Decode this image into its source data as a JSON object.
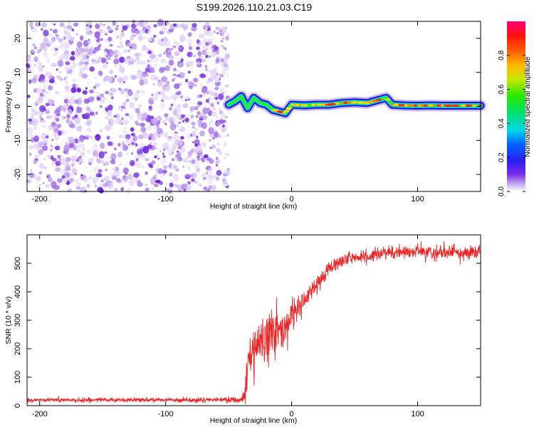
{
  "title": "S199.2026.110.21.03.C19",
  "colors": {
    "snr_line": "#ee2222",
    "noise_purple": "#8a2be2",
    "background": "#ffffff"
  },
  "chart_data": [
    {
      "type": "heatmap",
      "xlabel": "Height of straight line (km)",
      "ylabel": "Frequency (Hz)",
      "xlim": [
        -210,
        150
      ],
      "ylim": [
        -25,
        25
      ],
      "xticks": [
        -200,
        -100,
        0,
        100
      ],
      "yticks": [
        -20,
        -10,
        0,
        10,
        20
      ],
      "noise_region": {
        "x_start": -210,
        "x_end": -50
      },
      "trace": {
        "x": [
          -50,
          -45,
          -40,
          -35,
          -30,
          -25,
          -20,
          -15,
          -10,
          -5,
          0,
          10,
          20,
          30,
          40,
          50,
          60,
          70,
          75,
          80,
          90,
          100,
          110,
          120,
          130,
          140,
          150
        ],
        "freq": [
          0.5,
          1.5,
          3.0,
          -0.5,
          2.5,
          1.0,
          0.5,
          -1.0,
          -1.5,
          -2.0,
          0.5,
          0.3,
          0.5,
          0.5,
          1.0,
          1.2,
          1.0,
          2.0,
          2.5,
          0.5,
          0.3,
          0.2,
          0.3,
          0.2,
          0.2,
          0.2,
          0.2
        ],
        "amp": [
          0.25,
          0.3,
          0.35,
          0.3,
          0.4,
          0.4,
          0.45,
          0.5,
          0.55,
          0.6,
          0.7,
          0.85,
          0.9,
          0.9,
          0.95,
          0.95,
          0.95,
          0.95,
          0.9,
          0.85,
          0.85,
          0.85,
          0.85,
          0.8,
          0.8,
          0.8,
          0.8
        ]
      },
      "colorbar": {
        "label": "Normalized spectral amplitude",
        "range": [
          0.0,
          1.0
        ],
        "ticks": [
          "0.0",
          "0.2",
          "0.4",
          "0.6",
          "0.8"
        ],
        "tick_values": [
          0.0,
          0.2,
          0.4,
          0.6,
          0.8
        ]
      }
    },
    {
      "type": "line",
      "xlabel": "Height of straight line (km)",
      "ylabel": "SNR (10 * v/v)",
      "xlim": [
        -210,
        150
      ],
      "ylim": [
        0,
        600
      ],
      "xticks": [
        -200,
        -100,
        0,
        100
      ],
      "yticks": [
        0,
        100,
        200,
        300,
        400,
        500
      ],
      "series": [
        {
          "name": "SNR",
          "x": [
            -210,
            -150,
            -100,
            -50,
            -40,
            -37,
            -35,
            -30,
            -25,
            -20,
            -15,
            -10,
            -5,
            0,
            10,
            20,
            30,
            40,
            50,
            60,
            80,
            100,
            120,
            150
          ],
          "y": [
            20,
            20,
            20,
            20,
            20,
            40,
            140,
            200,
            230,
            260,
            250,
            260,
            280,
            320,
            370,
            430,
            480,
            510,
            520,
            530,
            540,
            540,
            540,
            540
          ],
          "noise": [
            6,
            6,
            6,
            8,
            10,
            40,
            60,
            70,
            80,
            80,
            70,
            60,
            50,
            40,
            30,
            25,
            20,
            20,
            20,
            20,
            20,
            20,
            20,
            20
          ]
        }
      ]
    }
  ]
}
